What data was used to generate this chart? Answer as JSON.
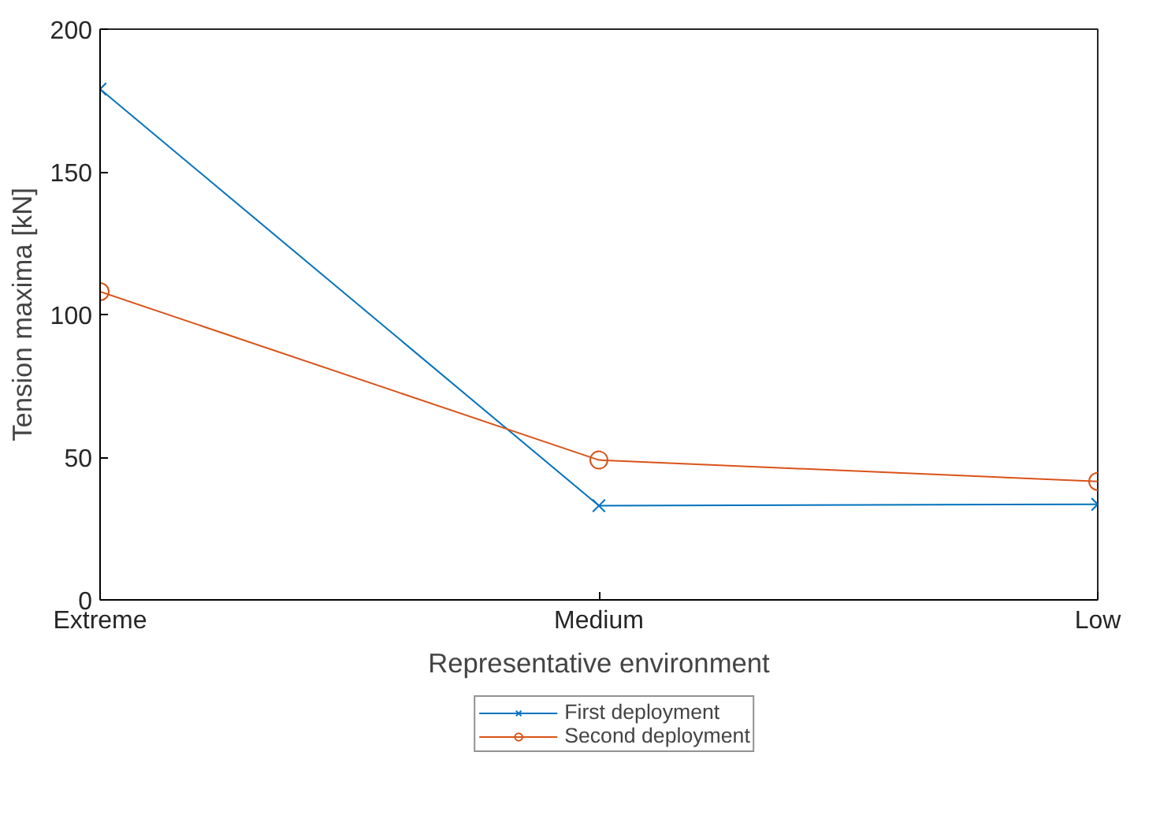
{
  "chart_data": {
    "type": "line",
    "xlabel": "Representative environment",
    "ylabel": "Tension maxima [kN]",
    "categories": [
      "Extreme",
      "Medium",
      "Low"
    ],
    "series": [
      {
        "name": "First deployment",
        "color": "#0072bd",
        "marker": "cross",
        "values": [
          179,
          33,
          33.5
        ]
      },
      {
        "name": "Second deployment",
        "color": "#d95319",
        "marker": "circle",
        "values": [
          108,
          49,
          41.5
        ]
      }
    ],
    "ylim": [
      0,
      200
    ],
    "yticks": [
      0,
      50,
      100,
      150,
      200
    ],
    "grid": false,
    "legend": "bottom",
    "line_style": "solid"
  }
}
